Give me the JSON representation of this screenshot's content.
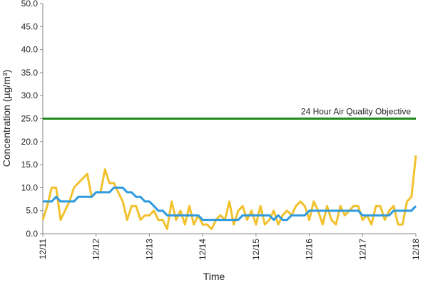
{
  "chart_data": {
    "type": "line",
    "xlabel": "Time",
    "ylabel": "Concentration (µg/m³)",
    "categories": [
      "12/11",
      null,
      null,
      null,
      null,
      null,
      null,
      null,
      null,
      null,
      null,
      null,
      "12/12",
      null,
      null,
      null,
      null,
      null,
      null,
      null,
      null,
      null,
      null,
      null,
      "12/13",
      null,
      null,
      null,
      null,
      null,
      null,
      null,
      null,
      null,
      null,
      null,
      "12/14",
      null,
      null,
      null,
      null,
      null,
      null,
      null,
      null,
      null,
      null,
      null,
      "12/15",
      null,
      null,
      null,
      null,
      null,
      null,
      null,
      null,
      null,
      null,
      null,
      "12/16",
      null,
      null,
      null,
      null,
      null,
      null,
      null,
      null,
      null,
      null,
      null,
      "12/17",
      null,
      null,
      null,
      null,
      null,
      null,
      null,
      null,
      null,
      null,
      null,
      "12/18"
    ],
    "series": [
      {
        "color": "#f2c12e",
        "values": [
          3,
          6,
          10,
          10,
          3,
          5,
          7,
          10,
          11,
          12,
          13,
          8,
          9,
          9,
          14,
          11,
          11,
          9,
          7,
          3,
          6,
          6,
          3,
          4,
          4,
          5,
          3,
          3,
          1,
          7,
          3,
          5,
          2,
          6,
          2,
          4,
          2,
          2,
          1,
          3,
          4,
          3,
          7,
          2,
          5,
          6,
          3,
          5,
          2,
          6,
          2,
          3,
          5,
          2,
          4,
          5,
          4,
          6,
          7,
          6,
          3,
          7,
          5,
          2,
          6,
          3,
          2,
          6,
          4,
          5,
          6,
          6,
          3,
          4,
          2,
          6,
          6,
          3,
          5,
          6,
          2,
          2,
          7,
          8,
          17
        ]
      },
      {
        "color": "#2e9ae0",
        "values": [
          7,
          7,
          7,
          8,
          7,
          7,
          7,
          7,
          8,
          8,
          8,
          8,
          9,
          9,
          9,
          9,
          10,
          10,
          10,
          9,
          9,
          8,
          8,
          7,
          7,
          6,
          5,
          5,
          4,
          4,
          4,
          4,
          4,
          4,
          4,
          4,
          3,
          3,
          3,
          3,
          3,
          3,
          3,
          3,
          3,
          4,
          4,
          4,
          4,
          4,
          4,
          4,
          3,
          4,
          3,
          3,
          4,
          4,
          4,
          4,
          5,
          5,
          5,
          5,
          5,
          5,
          5,
          5,
          5,
          5,
          5,
          5,
          4,
          4,
          4,
          4,
          4,
          4,
          4,
          5,
          5,
          5,
          5,
          5,
          6
        ]
      }
    ],
    "objective": {
      "value": 25,
      "label": "24 Hour Air Quality Objective",
      "color": "#1e8a1e"
    },
    "ylim": [
      0,
      50
    ],
    "yticks": [
      {
        "value": 0,
        "label": "0.0"
      },
      {
        "value": 5,
        "label": "5.0"
      },
      {
        "value": 10,
        "label": "10.0"
      },
      {
        "value": 15,
        "label": "15.0"
      },
      {
        "value": 20,
        "label": "20.0"
      },
      {
        "value": 25,
        "label": "25.0"
      },
      {
        "value": 30,
        "label": "30.0"
      },
      {
        "value": 35,
        "label": "35.0"
      },
      {
        "value": 40,
        "label": "40.0"
      },
      {
        "value": 45,
        "label": "45.0"
      },
      {
        "value": 50,
        "label": "50.0"
      }
    ]
  }
}
